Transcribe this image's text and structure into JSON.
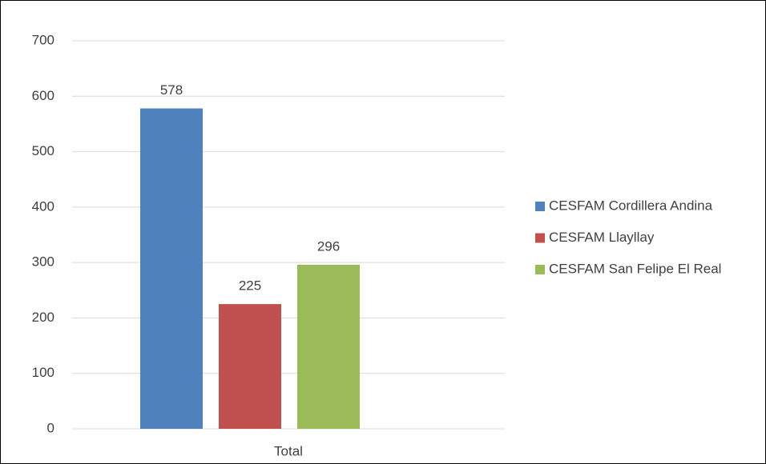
{
  "chart_data": {
    "type": "bar",
    "categories": [
      "Total"
    ],
    "series": [
      {
        "name": "CESFAM Cordillera Andina",
        "color": "#4f81bd",
        "values": [
          578
        ]
      },
      {
        "name": "CESFAM Llayllay",
        "color": "#c0504d",
        "values": [
          225
        ]
      },
      {
        "name": "CESFAM San Felipe El Real",
        "color": "#9bbb59",
        "values": [
          296
        ]
      }
    ],
    "ylim": [
      0,
      700
    ],
    "yticks": [
      0,
      100,
      200,
      300,
      400,
      500,
      600,
      700
    ],
    "grid": true,
    "legend": "right",
    "data_labels": true
  }
}
